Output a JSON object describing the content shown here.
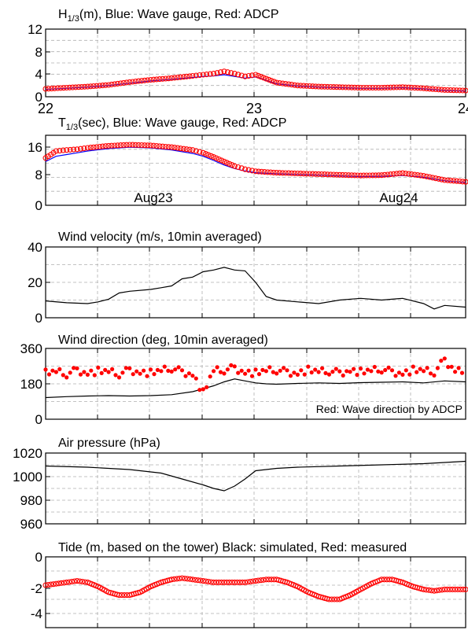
{
  "chart_data": [
    {
      "type": "scatter",
      "title": "H1/3(m), Blue: Wave gauge, Red: ADCP",
      "title_parts": {
        "pre": "H",
        "sub": "1/3",
        "post": "(m), Blue: Wave gauge, Red: ADCP"
      },
      "xlim": [
        22,
        24
      ],
      "ylim": [
        0,
        12
      ],
      "yticks": [
        "0",
        "4",
        "8",
        "12"
      ],
      "xticks": [
        "22",
        "23",
        "24"
      ],
      "grid": true,
      "series": [
        {
          "name": "Wave gauge",
          "color": "#0000ff",
          "kind": "line",
          "x": [
            22.0,
            22.1,
            22.2,
            22.3,
            22.4,
            22.5,
            22.6,
            22.7,
            22.75,
            22.8,
            22.85,
            22.9,
            22.95,
            23.0,
            23.05,
            23.1,
            23.2,
            23.3,
            23.4,
            23.5,
            23.6,
            23.7,
            23.8,
            23.9,
            24.0
          ],
          "values": [
            1.3,
            1.5,
            1.7,
            2.0,
            2.4,
            2.8,
            3.1,
            3.4,
            3.6,
            3.7,
            3.9,
            3.6,
            3.3,
            3.5,
            2.9,
            2.3,
            1.9,
            1.7,
            1.6,
            1.5,
            1.5,
            1.6,
            1.4,
            1.1,
            1.0
          ]
        },
        {
          "name": "ADCP",
          "color": "#ff0000",
          "kind": "circles",
          "x": [
            22.0,
            22.1,
            22.2,
            22.3,
            22.4,
            22.5,
            22.6,
            22.7,
            22.75,
            22.8,
            22.85,
            22.9,
            22.95,
            23.0,
            23.05,
            23.1,
            23.2,
            23.3,
            23.4,
            23.5,
            23.6,
            23.7,
            23.8,
            23.9,
            24.0
          ],
          "values": [
            1.4,
            1.6,
            1.8,
            2.1,
            2.6,
            3.0,
            3.3,
            3.7,
            3.9,
            4.1,
            4.5,
            4.1,
            3.6,
            3.9,
            3.2,
            2.5,
            2.0,
            1.8,
            1.7,
            1.6,
            1.6,
            1.7,
            1.5,
            1.2,
            1.1
          ]
        }
      ]
    },
    {
      "type": "scatter",
      "title": "T1/3(sec), Blue: Wave gauge, Red: ADCP",
      "title_parts": {
        "pre": "T",
        "sub": "1/3",
        "post": "(sec), Blue: Wave gauge, Red: ADCP"
      },
      "xlim": [
        22,
        24
      ],
      "ylim": [
        0,
        20
      ],
      "yticks": [
        "0",
        "8",
        "16"
      ],
      "annotations": [
        "Aug23",
        "Aug24"
      ],
      "grid": true,
      "series": [
        {
          "name": "Wave gauge",
          "color": "#0000ff",
          "kind": "line",
          "x": [
            22.0,
            22.05,
            22.1,
            22.15,
            22.2,
            22.3,
            22.4,
            22.5,
            22.6,
            22.7,
            22.75,
            22.8,
            22.85,
            22.9,
            22.95,
            23.0,
            23.1,
            23.2,
            23.3,
            23.4,
            23.5,
            23.6,
            23.7,
            23.8,
            23.9,
            24.0
          ],
          "values": [
            12.5,
            14.0,
            14.5,
            15.0,
            15.5,
            16.2,
            16.6,
            16.4,
            15.8,
            14.8,
            14.0,
            12.8,
            11.5,
            10.5,
            9.8,
            9.3,
            9.0,
            8.8,
            8.6,
            8.4,
            8.2,
            8.3,
            8.5,
            8.0,
            7.0,
            6.5
          ]
        },
        {
          "name": "ADCP",
          "color": "#ff0000",
          "kind": "circles",
          "x": [
            22.0,
            22.05,
            22.1,
            22.15,
            22.2,
            22.3,
            22.4,
            22.5,
            22.6,
            22.7,
            22.75,
            22.8,
            22.85,
            22.9,
            22.95,
            23.0,
            23.1,
            23.2,
            23.3,
            23.4,
            23.5,
            23.6,
            23.7,
            23.8,
            23.9,
            24.0
          ],
          "values": [
            13.5,
            15.5,
            15.8,
            16.0,
            16.4,
            17.0,
            17.3,
            17.1,
            16.6,
            15.8,
            15.0,
            13.8,
            12.5,
            11.2,
            10.3,
            9.7,
            9.3,
            9.1,
            8.9,
            8.7,
            8.5,
            8.6,
            9.2,
            8.4,
            7.2,
            6.7
          ]
        }
      ]
    },
    {
      "type": "line",
      "title": "Wind velocity (m/s, 10min averaged)",
      "xlim": [
        22,
        24
      ],
      "ylim": [
        0,
        40
      ],
      "yticks": [
        "0",
        "20",
        "40"
      ],
      "grid": true,
      "series": [
        {
          "color": "#000000",
          "kind": "line",
          "x": [
            22.0,
            22.1,
            22.2,
            22.25,
            22.3,
            22.35,
            22.4,
            22.5,
            22.55,
            22.6,
            22.65,
            22.7,
            22.75,
            22.8,
            22.85,
            22.9,
            22.95,
            23.0,
            23.05,
            23.1,
            23.2,
            23.3,
            23.4,
            23.5,
            23.6,
            23.7,
            23.8,
            23.85,
            23.9,
            24.0
          ],
          "values": [
            9.5,
            8.5,
            8.0,
            9.0,
            10.5,
            14.0,
            15.0,
            16.0,
            17.0,
            18.0,
            22.0,
            23.0,
            26.0,
            27.0,
            28.5,
            27.0,
            26.5,
            20.0,
            12.0,
            10.0,
            9.0,
            8.0,
            10.0,
            11.0,
            10.0,
            11.0,
            8.0,
            5.0,
            7.0,
            6.0
          ]
        }
      ]
    },
    {
      "type": "scatter",
      "title": "Wind direction (deg, 10min averaged)",
      "xlim": [
        22,
        24
      ],
      "ylim": [
        0,
        360
      ],
      "yticks": [
        "0",
        "180",
        "360"
      ],
      "annotations": [
        "Red: Wave direction by ADCP"
      ],
      "grid": true,
      "series": [
        {
          "color": "#000000",
          "kind": "line",
          "x": [
            22.0,
            22.1,
            22.2,
            22.3,
            22.4,
            22.5,
            22.6,
            22.7,
            22.75,
            22.8,
            22.85,
            22.9,
            22.95,
            23.0,
            23.05,
            23.1,
            23.2,
            23.3,
            23.4,
            23.5,
            23.6,
            23.7,
            23.8,
            23.9,
            24.0
          ],
          "values": [
            110,
            115,
            118,
            120,
            118,
            120,
            125,
            140,
            155,
            170,
            190,
            205,
            195,
            185,
            180,
            178,
            182,
            185,
            182,
            186,
            188,
            190,
            185,
            195,
            190
          ]
        },
        {
          "color": "#ff0000",
          "kind": "dots",
          "x": [
            22.0,
            22.05,
            22.1,
            22.15,
            22.2,
            22.25,
            22.3,
            22.35,
            22.4,
            22.45,
            22.5,
            22.55,
            22.6,
            22.65,
            22.7,
            22.75,
            22.8,
            22.85,
            22.9,
            22.95,
            23.0,
            23.05,
            23.1,
            23.15,
            23.2,
            23.25,
            23.3,
            23.35,
            23.4,
            23.45,
            23.5,
            23.55,
            23.6,
            23.65,
            23.7,
            23.75,
            23.8,
            23.85,
            23.9,
            23.95,
            24.0
          ],
          "values": [
            235,
            240,
            230,
            250,
            235,
            245,
            240,
            230,
            250,
            240,
            235,
            245,
            260,
            240,
            230,
            135,
            245,
            250,
            260,
            240,
            235,
            245,
            250,
            240,
            235,
            250,
            240,
            245,
            235,
            250,
            240,
            245,
            255,
            240,
            235,
            250,
            245,
            240,
            300,
            250,
            255
          ]
        }
      ]
    },
    {
      "type": "line",
      "title": "Air pressure (hPa)",
      "xlim": [
        22,
        24
      ],
      "ylim": [
        960,
        1020
      ],
      "yticks": [
        "960",
        "980",
        "1000",
        "1020"
      ],
      "grid": true,
      "series": [
        {
          "color": "#000000",
          "kind": "line",
          "x": [
            22.0,
            22.2,
            22.4,
            22.55,
            22.65,
            22.75,
            22.8,
            22.85,
            22.9,
            22.95,
            23.0,
            23.1,
            23.2,
            23.4,
            23.6,
            23.8,
            24.0
          ],
          "values": [
            1009,
            1008,
            1006,
            1003,
            998,
            993,
            990,
            988,
            992,
            998,
            1005,
            1007,
            1008,
            1009,
            1010,
            1011,
            1013
          ]
        }
      ]
    },
    {
      "type": "line",
      "title": "Tide (m, based on the tower) Black: simulated, Red: measured",
      "xlim": [
        22,
        24
      ],
      "ylim": [
        -5,
        0
      ],
      "yticks": [
        "0",
        "-2",
        "-4"
      ],
      "grid": true,
      "series": [
        {
          "color": "#ff0000",
          "kind": "circles-dense",
          "x": [
            22.0,
            22.05,
            22.1,
            22.15,
            22.2,
            22.25,
            22.3,
            22.35,
            22.4,
            22.45,
            22.5,
            22.55,
            22.6,
            22.65,
            22.7,
            22.75,
            22.8,
            22.85,
            22.9,
            22.95,
            23.0,
            23.05,
            23.1,
            23.15,
            23.2,
            23.25,
            23.3,
            23.35,
            23.4,
            23.45,
            23.5,
            23.55,
            23.6,
            23.65,
            23.7,
            23.75,
            23.8,
            23.85,
            23.9,
            23.95,
            24.0
          ],
          "values": [
            -2.0,
            -1.9,
            -1.8,
            -1.7,
            -1.8,
            -2.1,
            -2.5,
            -2.7,
            -2.7,
            -2.5,
            -2.1,
            -1.8,
            -1.6,
            -1.5,
            -1.6,
            -1.7,
            -1.8,
            -1.8,
            -1.8,
            -1.8,
            -1.7,
            -1.6,
            -1.6,
            -1.8,
            -2.1,
            -2.5,
            -2.8,
            -3.0,
            -3.0,
            -2.7,
            -2.3,
            -1.9,
            -1.6,
            -1.6,
            -1.8,
            -2.1,
            -2.3,
            -2.4,
            -2.3,
            -2.3,
            -2.3
          ]
        }
      ]
    }
  ]
}
